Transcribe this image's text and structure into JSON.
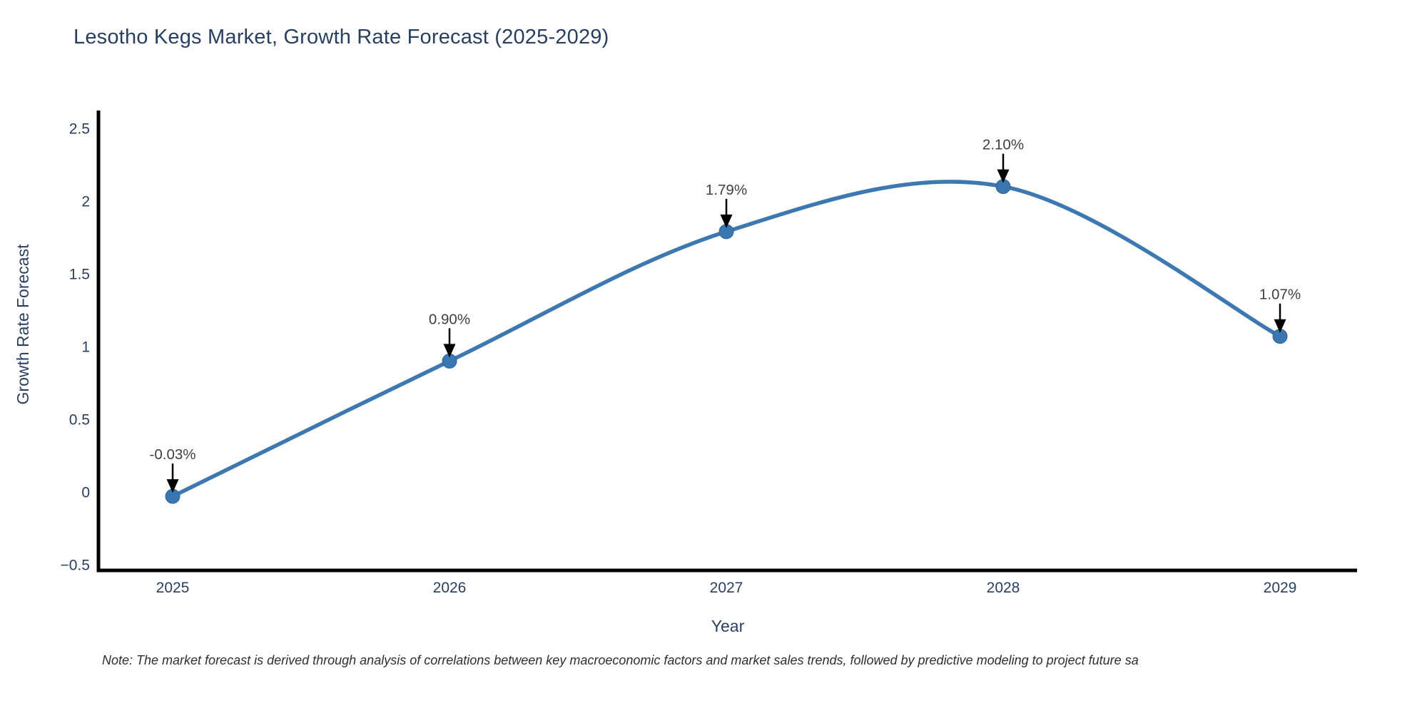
{
  "chart_data": {
    "type": "line",
    "title": "Lesotho Kegs Market, Growth Rate Forecast (2025-2029)",
    "xlabel": "Year",
    "ylabel": "Growth Rate Forecast",
    "categories": [
      "2025",
      "2026",
      "2027",
      "2028",
      "2029"
    ],
    "values": [
      -0.03,
      0.9,
      1.79,
      2.1,
      1.07
    ],
    "point_labels": [
      "-0.03%",
      "0.90%",
      "1.79%",
      "2.10%",
      "1.07%"
    ],
    "ytick_values": [
      2.5,
      2,
      1.5,
      1,
      0.5,
      0,
      -0.5
    ],
    "ytick_labels": [
      "2.5",
      "2",
      "1.5",
      "1",
      "0.5",
      "0",
      "−0.5"
    ],
    "ylim": [
      -0.55,
      2.62
    ],
    "line_shape": "spline",
    "markers": true,
    "grid": false,
    "legend": "none",
    "line_color": "#3e78b0",
    "marker_color": "#3a76af",
    "annotation_arrow_color": "#000000"
  },
  "note": "Note: The market forecast is derived through analysis of correlations between key macroeconomic factors and market sales trends, followed by predictive modeling to project future sa",
  "colors": {
    "title_text": "#2a3f5f",
    "tick_text": "#2a3f5f",
    "axis_title_text": "#2a3f5f",
    "annotation_text": "#3f3f3f",
    "axis_line": "#000000",
    "background": "#ffffff"
  }
}
